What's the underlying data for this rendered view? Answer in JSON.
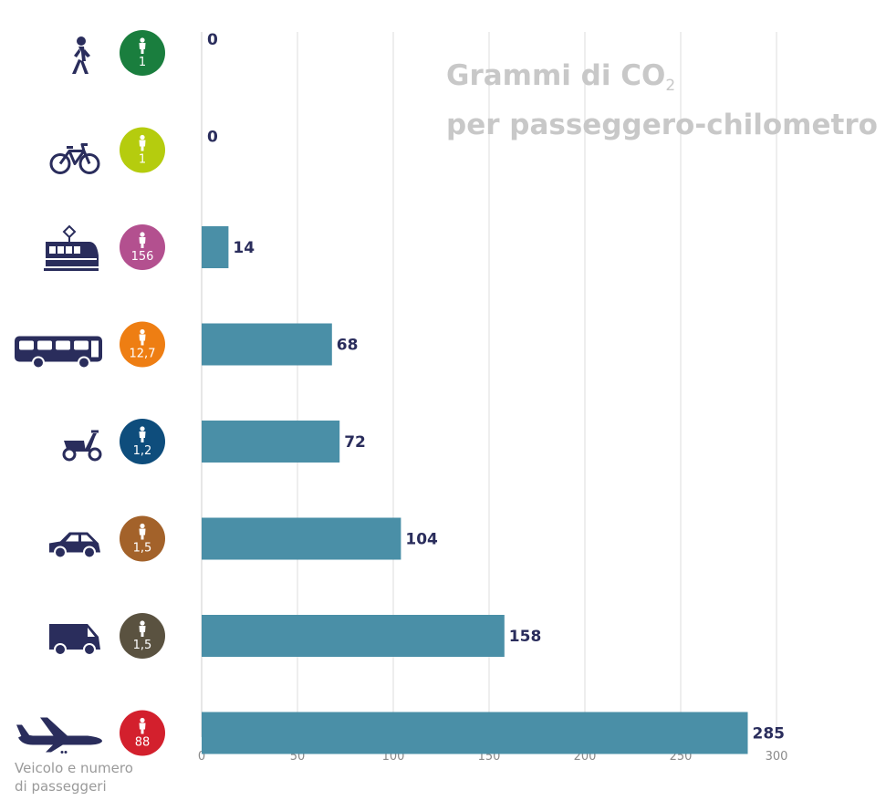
{
  "chart_data": {
    "type": "bar",
    "orientation": "horizontal",
    "title_main": "Grammi di CO",
    "title_sub": "2",
    "title_line2": "per passeggero-chilometro",
    "ylabel_line1": "Veicolo e numero",
    "ylabel_line2": "di passeggeri",
    "xlim": [
      0,
      300
    ],
    "xticks": [
      "0",
      "50",
      "100",
      "150",
      "200",
      "250",
      "300"
    ],
    "grid": "vertical",
    "bar_color": "#4a8fa7",
    "categories": [
      {
        "vehicle_icon": "walking-person-icon",
        "passengers": "1",
        "badge_color": "#1a7e3e",
        "value": 0,
        "label": "0"
      },
      {
        "vehicle_icon": "bicycle-icon",
        "passengers": "1",
        "badge_color": "#b5cc0e",
        "value": 0,
        "label": "0"
      },
      {
        "vehicle_icon": "tram-icon",
        "passengers": "156",
        "badge_color": "#b3508f",
        "value": 14,
        "label": "14"
      },
      {
        "vehicle_icon": "bus-icon",
        "passengers": "12,7",
        "badge_color": "#ee7e13",
        "value": 68,
        "label": "68"
      },
      {
        "vehicle_icon": "scooter-icon",
        "passengers": "1,2",
        "badge_color": "#0e4d7c",
        "value": 72,
        "label": "72"
      },
      {
        "vehicle_icon": "car-icon",
        "passengers": "1,5",
        "badge_color": "#a3622a",
        "value": 104,
        "label": "104"
      },
      {
        "vehicle_icon": "van-icon",
        "passengers": "1,5",
        "badge_color": "#5a5240",
        "value": 158,
        "label": "158"
      },
      {
        "vehicle_icon": "airplane-icon",
        "passengers": "88",
        "badge_color": "#d3202d",
        "value": 285,
        "label": "285"
      }
    ]
  }
}
